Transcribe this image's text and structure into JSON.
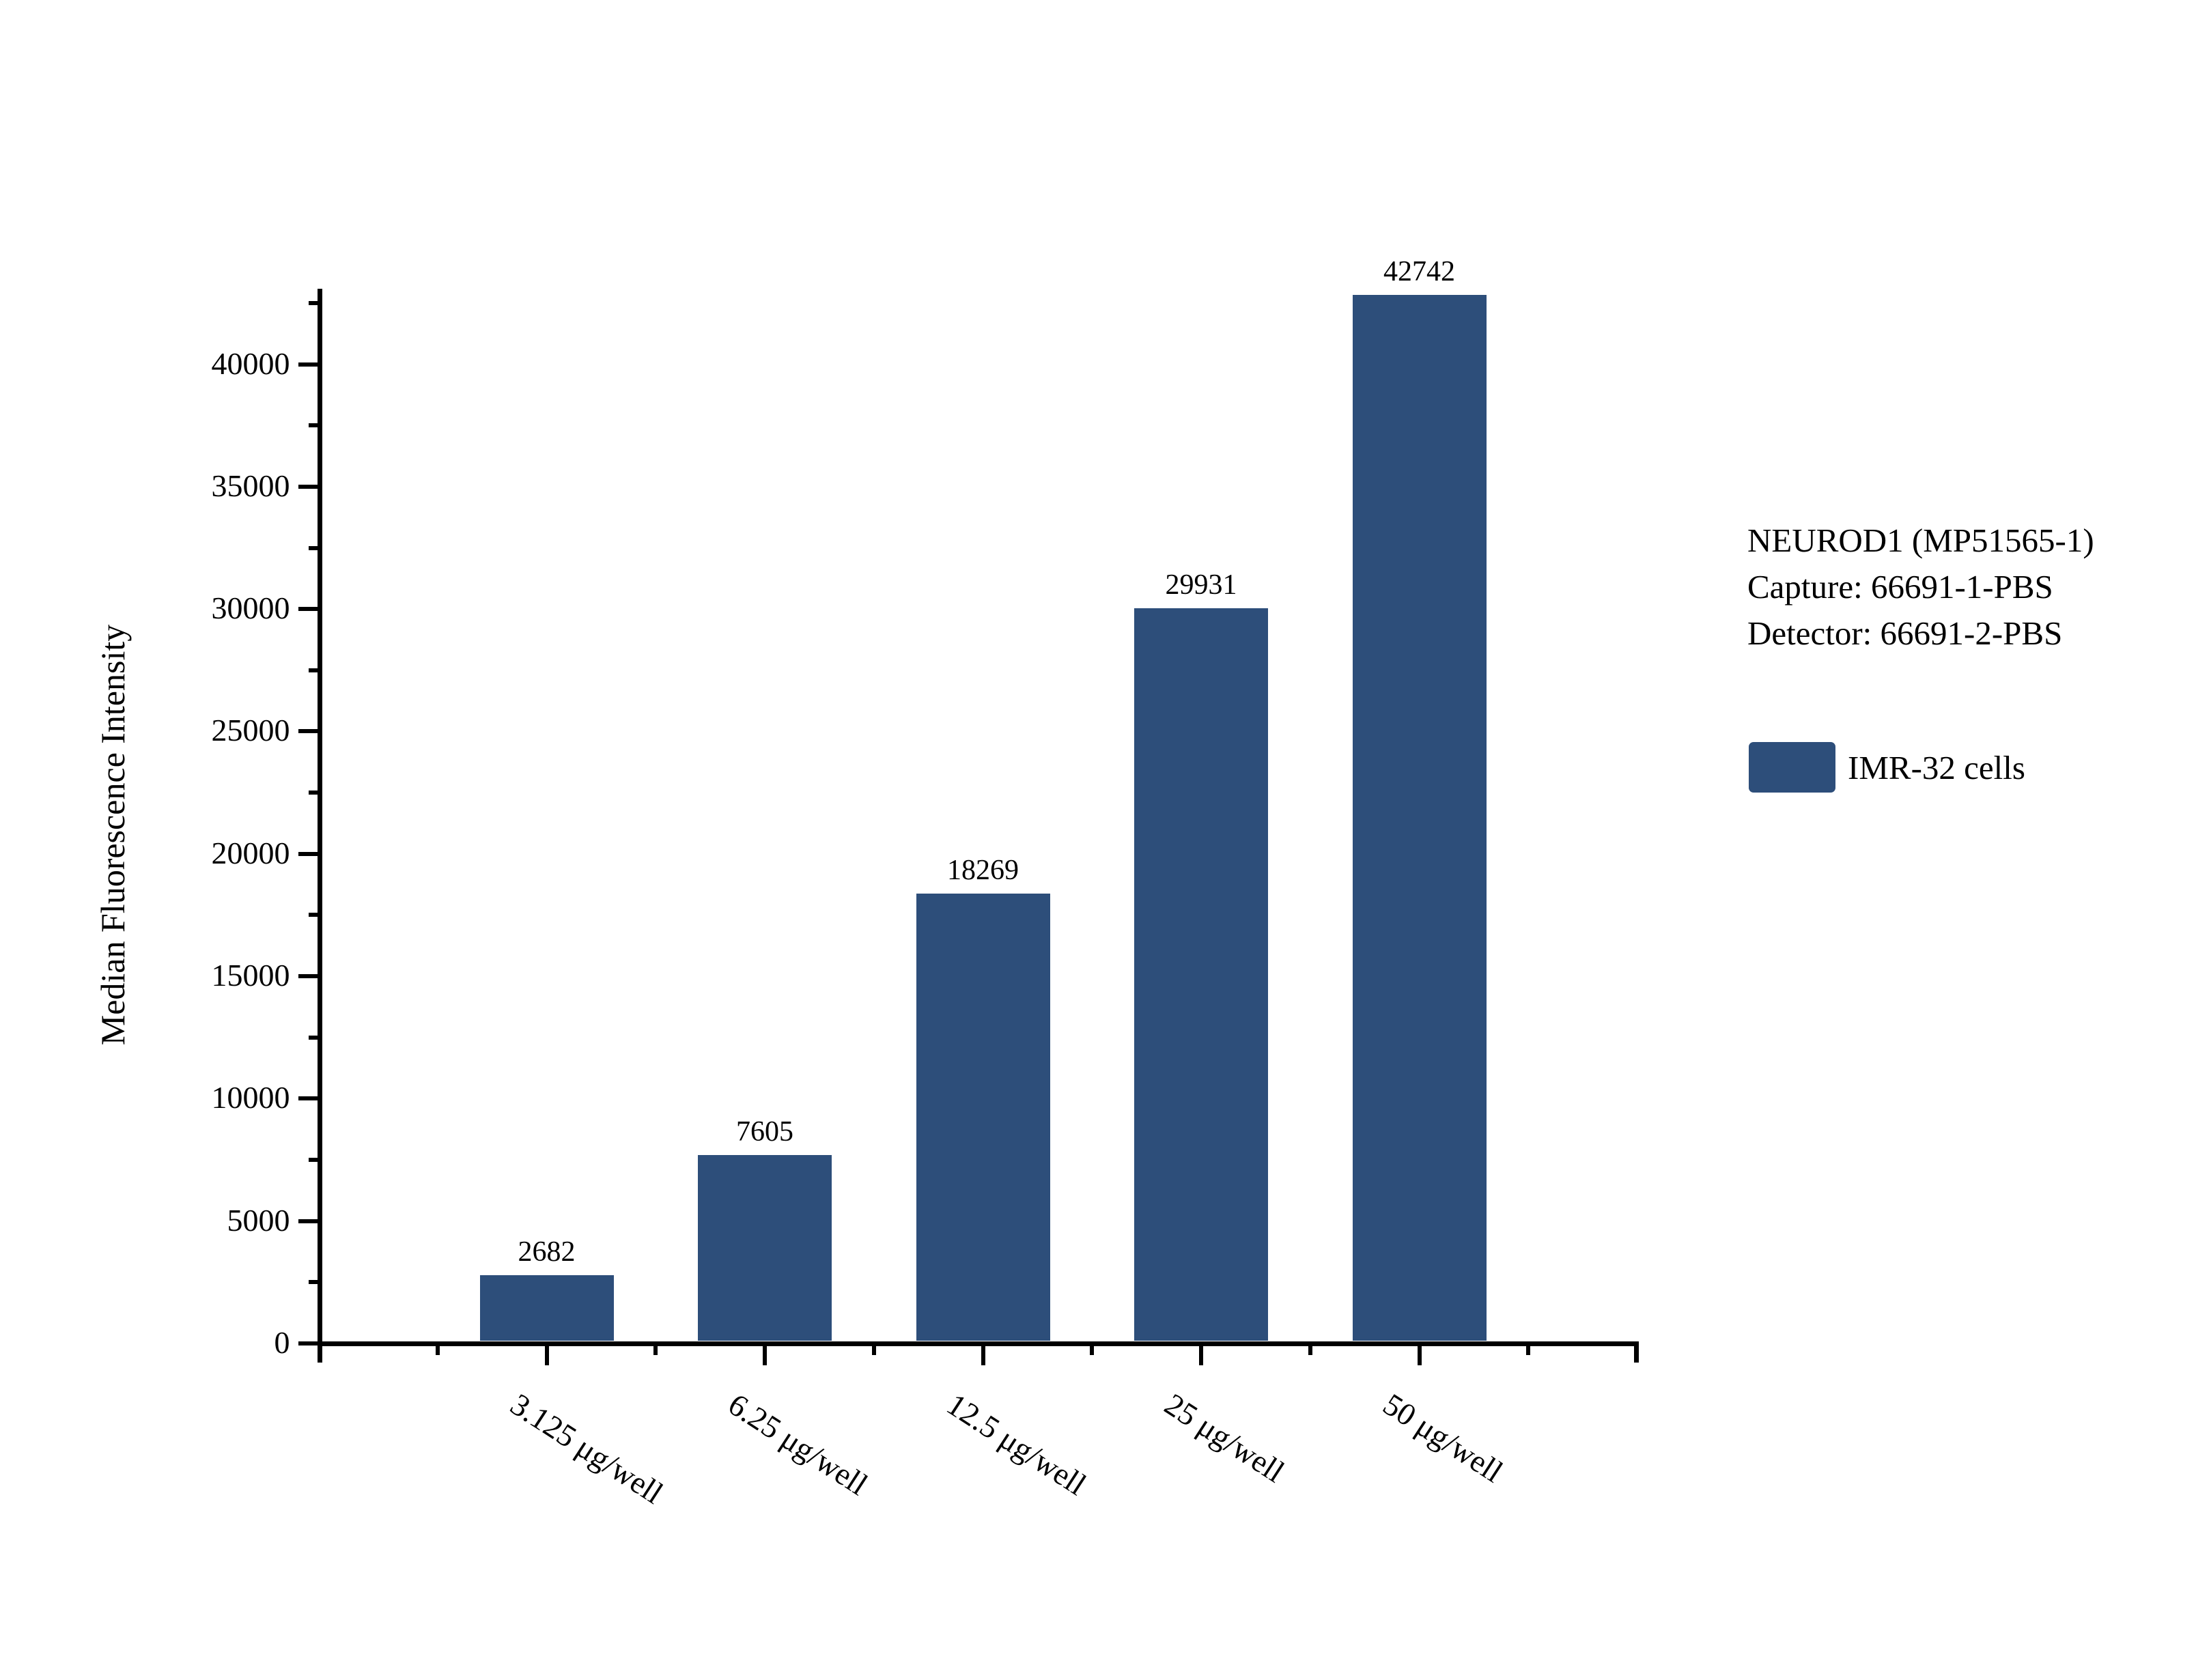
{
  "chart_data": {
    "type": "bar",
    "title": "",
    "categories": [
      "3.125 μg/well",
      "6.25 μg/well",
      "12.5 μg/well",
      "25 μg/well",
      "50 μg/well"
    ],
    "values": [
      2682,
      7605,
      18269,
      29931,
      42742
    ],
    "value_labels": [
      "2682",
      "7605",
      "18269",
      "29931",
      "42742"
    ],
    "series": [
      {
        "name": "IMR-32 cells",
        "color": "#2d4e7a"
      }
    ],
    "xlabel": "",
    "ylabel": "Median Fluorescence Intensity",
    "ylim": [
      0,
      43000
    ],
    "y_major_tick_step": 5000,
    "y_minor_tick_step": 2500,
    "y_tick_labels": [
      "0",
      "5000",
      "10000",
      "15000",
      "20000",
      "25000",
      "30000",
      "35000",
      "40000"
    ],
    "grid": false,
    "legend_position": "right"
  },
  "annotation": {
    "line1": "NEUROD1 (MP51565-1)",
    "line2": "Capture: 66691-1-PBS",
    "line3": "Detector: 66691-2-PBS"
  },
  "legend": {
    "label": "IMR-32 cells",
    "swatch_color": "#2d4e7a"
  },
  "colors": {
    "bar": "#2d4e7a",
    "axis": "#000000",
    "text": "#000000",
    "background": "#ffffff"
  }
}
